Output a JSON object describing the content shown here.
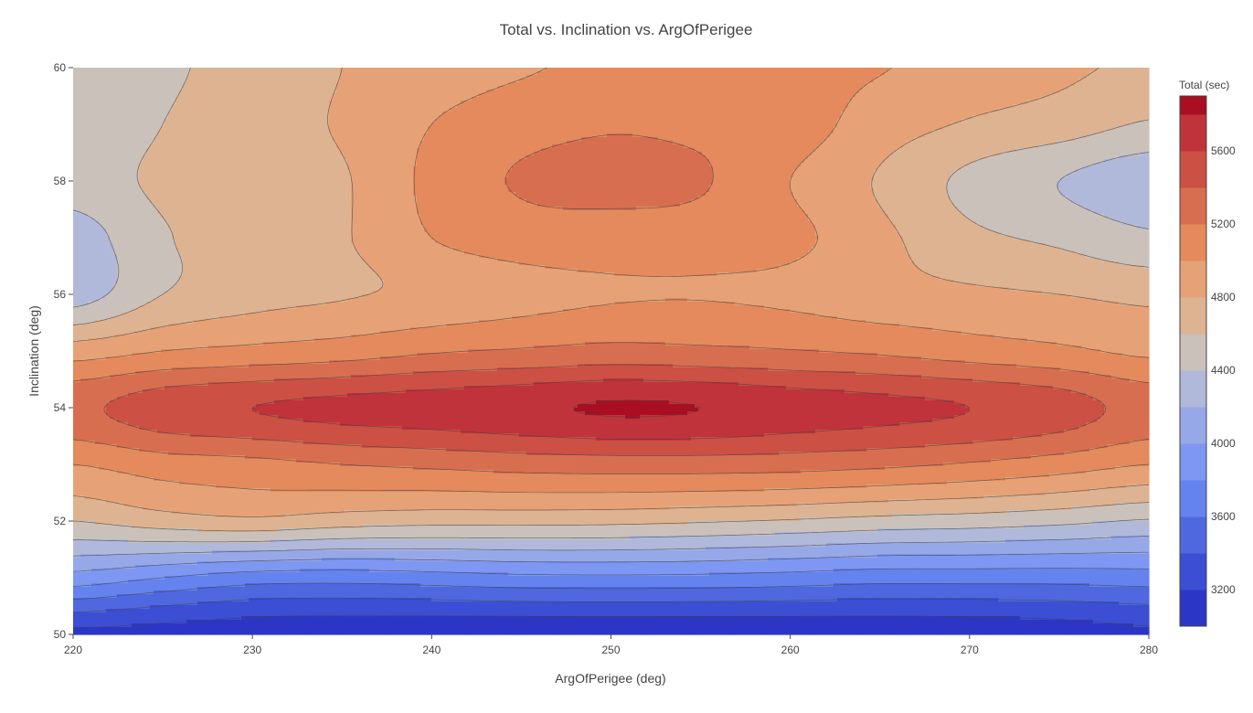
{
  "chart_data": {
    "type": "contour",
    "title": "Total vs. Inclination vs. ArgOfPerigee",
    "xlabel": "ArgOfPerigee (deg)",
    "ylabel": "Inclination (deg)",
    "xlim": [
      220,
      280
    ],
    "ylim": [
      50,
      60
    ],
    "xticks": [
      "220",
      "230",
      "240",
      "250",
      "260",
      "270",
      "280"
    ],
    "yticks": [
      "50",
      "52",
      "54",
      "56",
      "58",
      "60"
    ],
    "x": [
      220,
      225,
      230,
      235,
      240,
      245,
      250,
      255,
      260,
      265,
      270,
      275,
      280
    ],
    "y": [
      50,
      51,
      52,
      53,
      54,
      55,
      56,
      57,
      58,
      59,
      60
    ],
    "z": [
      [
        3150,
        3110,
        3070,
        3050,
        3040,
        3030,
        3030,
        3030,
        3040,
        3050,
        3060,
        3090,
        3150
      ],
      [
        3920,
        3800,
        3700,
        3680,
        3710,
        3750,
        3760,
        3750,
        3720,
        3680,
        3680,
        3680,
        3700
      ],
      [
        4600,
        4700,
        4750,
        4690,
        4660,
        4660,
        4650,
        4620,
        4580,
        4530,
        4500,
        4450,
        4380
      ],
      [
        5000,
        5100,
        5140,
        5200,
        5240,
        5280,
        5300,
        5300,
        5280,
        5240,
        5180,
        5100,
        5000
      ],
      [
        5350,
        5520,
        5600,
        5660,
        5700,
        5760,
        5820,
        5800,
        5720,
        5660,
        5600,
        5500,
        5320
      ],
      [
        4900,
        5000,
        5050,
        5100,
        5180,
        5220,
        5260,
        5240,
        5210,
        5170,
        5100,
        5040,
        4960
      ],
      [
        4300,
        4600,
        4720,
        4780,
        4850,
        4930,
        4980,
        4990,
        4960,
        4880,
        4840,
        4800,
        4750
      ],
      [
        4300,
        4580,
        4680,
        4780,
        5000,
        5100,
        5120,
        5100,
        5050,
        4850,
        4650,
        4560,
        4440
      ],
      [
        4500,
        4640,
        4740,
        4780,
        5050,
        5220,
        5250,
        5220,
        5000,
        4780,
        4550,
        4400,
        4260
      ],
      [
        4450,
        4600,
        4720,
        4820,
        5000,
        5120,
        5180,
        5150,
        5100,
        4900,
        4780,
        4700,
        4580
      ],
      [
        4400,
        4560,
        4680,
        4800,
        4900,
        4980,
        5040,
        5050,
        5060,
        5010,
        4920,
        4840,
        4760
      ]
    ],
    "contour_levels": [
      3000,
      3200,
      3400,
      3600,
      3800,
      4000,
      4200,
      4400,
      4600,
      4800,
      5000,
      5200,
      5400,
      5600,
      5800
    ],
    "zlim": [
      3000,
      5900
    ],
    "colorscale": [
      "#0d1aa6",
      "#1f26b8",
      "#2c36c6",
      "#3c4ed4",
      "#4f68e0",
      "#6583ee",
      "#7d97f2",
      "#97a8e8",
      "#b0b9da",
      "#cbc1bb",
      "#deb392",
      "#e6a276",
      "#e48a5c",
      "#d86e50",
      "#cc5044",
      "#c0333a",
      "#a90e22"
    ],
    "colorbar": {
      "title": "Total (sec)",
      "ticks": [
        "3200",
        "3600",
        "4000",
        "4400",
        "4800",
        "5200",
        "5600"
      ]
    }
  }
}
